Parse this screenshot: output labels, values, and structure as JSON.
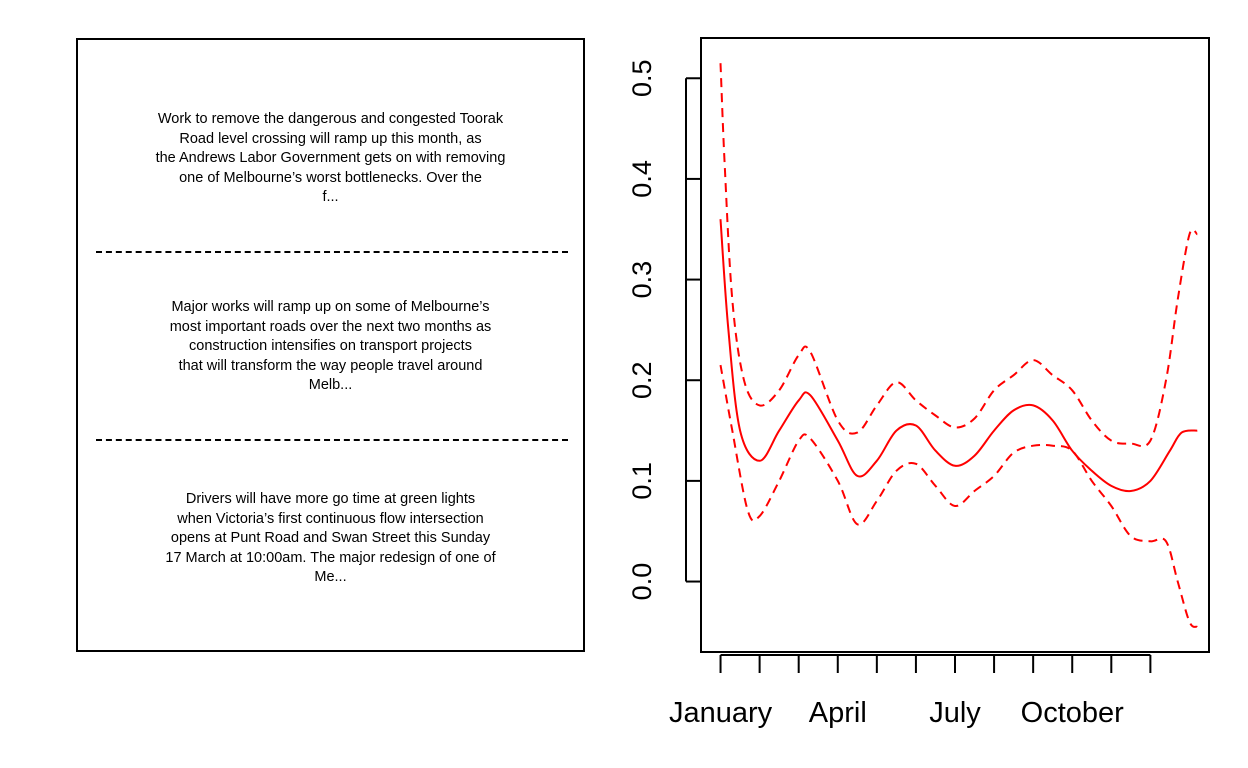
{
  "text_panel": {
    "excerpts": [
      "Work to remove the dangerous and congested Toorak\nRoad level crossing will ramp up this month, as\nthe Andrews Labor Government gets on with removing\none of Melbourne’s worst bottlenecks. Over the\nf...",
      "Major works will ramp up on some of Melbourne’s\nmost important roads over the next two months as\nconstruction intensifies on transport projects\nthat will transform the way people travel around\nMelb...",
      "Drivers will have more go time at green lights\nwhen Victoria’s first continuous flow intersection\nopens at Punt Road and Swan Street this Sunday\n17 March at 10:00am. The major redesign of one of\nMe..."
    ]
  },
  "chart_data": {
    "type": "line",
    "x_unit": "month",
    "x_tick_labels": [
      "January",
      "April",
      "July",
      "October"
    ],
    "x_tick_values": [
      1,
      4,
      7,
      10
    ],
    "minor_ticks": [
      1,
      2,
      3,
      4,
      5,
      6,
      7,
      8,
      9,
      10,
      11,
      12
    ],
    "y_ticks": [
      0.0,
      0.1,
      0.2,
      0.3,
      0.4,
      0.5
    ],
    "y_tick_labels": [
      "0.0",
      "0.1",
      "0.2",
      "0.3",
      "0.4",
      "0.5"
    ],
    "xlim": [
      0.5,
      13.5
    ],
    "ylim": [
      -0.07,
      0.54
    ],
    "color": "#ff0000",
    "series": [
      {
        "style": "solid",
        "x": [
          1.0,
          1.2,
          1.5,
          2.0,
          2.5,
          3.0,
          3.3,
          4.0,
          4.5,
          5.0,
          5.5,
          6.0,
          6.5,
          7.0,
          7.5,
          8.0,
          8.5,
          9.0,
          9.5,
          10.0,
          10.5,
          11.0,
          11.5,
          12.0,
          12.5,
          12.8,
          13.2
        ],
        "y": [
          0.36,
          0.25,
          0.15,
          0.12,
          0.15,
          0.18,
          0.185,
          0.14,
          0.105,
          0.12,
          0.15,
          0.155,
          0.13,
          0.115,
          0.125,
          0.15,
          0.17,
          0.175,
          0.16,
          0.13,
          0.11,
          0.095,
          0.09,
          0.1,
          0.13,
          0.148,
          0.15
        ]
      },
      {
        "style": "dashed",
        "x": [
          1.0,
          1.1,
          1.3,
          1.6,
          2.0,
          2.5,
          3.0,
          3.3,
          4.0,
          4.5,
          5.0,
          5.5,
          6.0,
          6.5,
          7.0,
          7.5,
          8.0,
          8.5,
          9.0,
          9.5,
          10.0,
          10.5,
          11.0,
          11.5,
          12.0,
          12.4,
          12.7,
          13.0,
          13.2
        ],
        "y": [
          0.515,
          0.42,
          0.28,
          0.2,
          0.175,
          0.19,
          0.225,
          0.228,
          0.16,
          0.148,
          0.175,
          0.198,
          0.18,
          0.165,
          0.153,
          0.162,
          0.19,
          0.205,
          0.22,
          0.205,
          0.19,
          0.16,
          0.14,
          0.137,
          0.14,
          0.2,
          0.28,
          0.345,
          0.345
        ]
      },
      {
        "style": "dashed",
        "x": [
          1.0,
          1.3,
          1.7,
          2.0,
          2.5,
          3.0,
          3.3,
          4.0,
          4.5,
          5.0,
          5.5,
          6.0,
          6.5,
          7.0,
          7.5,
          8.0,
          8.5,
          9.0,
          9.5,
          10.0,
          10.5,
          11.0,
          11.5,
          12.0,
          12.4,
          12.7,
          13.0,
          13.2
        ],
        "y": [
          0.215,
          0.15,
          0.07,
          0.065,
          0.1,
          0.14,
          0.142,
          0.1,
          0.057,
          0.08,
          0.11,
          0.117,
          0.095,
          0.075,
          0.09,
          0.105,
          0.128,
          0.135,
          0.135,
          0.13,
          0.1,
          0.075,
          0.045,
          0.04,
          0.04,
          0.0,
          -0.04,
          -0.045
        ]
      }
    ]
  }
}
